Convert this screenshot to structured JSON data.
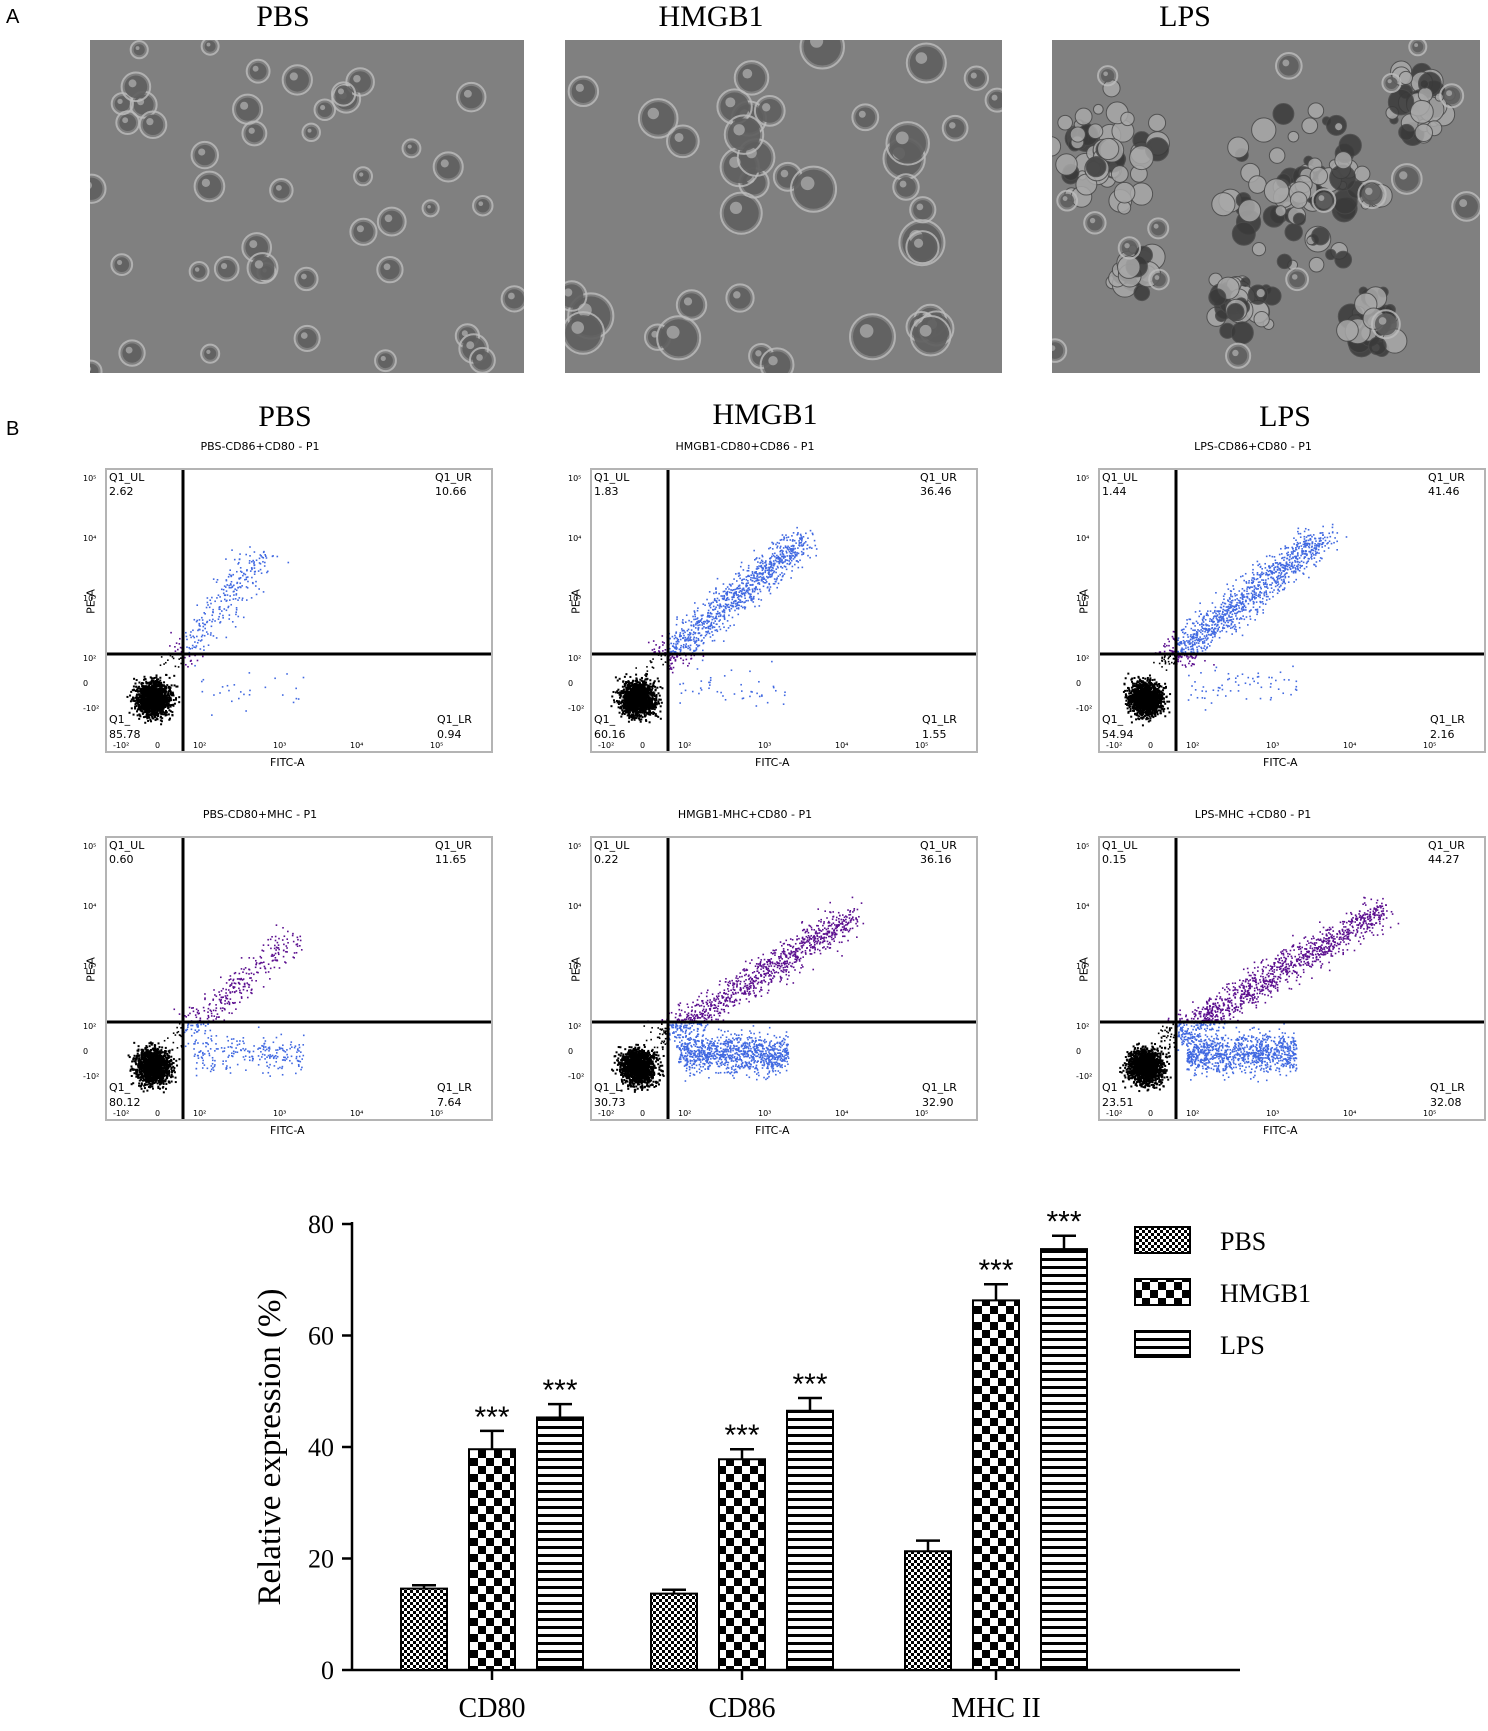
{
  "panel_a": {
    "letter": "A",
    "titles": [
      "PBS",
      "HMGB1",
      "LPS"
    ]
  },
  "panel_b": {
    "letter": "B",
    "titles": [
      "PBS",
      "HMGB1",
      "LPS"
    ],
    "flow_plots": [
      {
        "title": "PBS-CD86+CD80 - P1",
        "ul_name": "Q1_UL",
        "ul": "2.62",
        "ur_name": "Q1_UR",
        "ur": "10.66",
        "ll_name": "Q1_",
        "ll": "85.78",
        "lr_name": "Q1_LR",
        "lr": "0.94",
        "xlabel": "FITC-A",
        "ylabel": "PE-A",
        "upper_color": "#4169e1",
        "mid_color": "#5b0f8f",
        "kind": "cd86"
      },
      {
        "title": "HMGB1-CD80+CD86 - P1",
        "ul_name": "Q1_UL",
        "ul": "1.83",
        "ur_name": "Q1_UR",
        "ur": "36.46",
        "ll_name": "Q1_",
        "ll": "60.16",
        "lr_name": "Q1_LR",
        "lr": "1.55",
        "xlabel": "FITC-A",
        "ylabel": "PE-A",
        "upper_color": "#4169e1",
        "mid_color": "#5b0f8f",
        "kind": "cd86"
      },
      {
        "title": "LPS-CD86+CD80 - P1",
        "ul_name": "Q1_UL",
        "ul": "1.44",
        "ur_name": "Q1_UR",
        "ur": "41.46",
        "ll_name": "Q1_",
        "ll": "54.94",
        "lr_name": "Q1_LR",
        "lr": "2.16",
        "xlabel": "FITC-A",
        "ylabel": "PE-A",
        "upper_color": "#4169e1",
        "mid_color": "#5b0f8f",
        "kind": "cd86"
      },
      {
        "title": "PBS-CD80+MHC - P1",
        "ul_name": "Q1_UL",
        "ul": "0.60",
        "ur_name": "Q1_UR",
        "ur": "11.65",
        "ll_name": "Q1_",
        "ll": "80.12",
        "lr_name": "Q1_LR",
        "lr": "7.64",
        "xlabel": "FITC-A",
        "ylabel": "PE-A",
        "upper_color": "#5b0f8f",
        "mid_color": "#4169e1",
        "kind": "mhc"
      },
      {
        "title": "HMGB1-MHC+CD80 - P1",
        "ul_name": "Q1_UL",
        "ul": "0.22",
        "ur_name": "Q1_UR",
        "ur": "36.16",
        "ll_name": "Q1_L",
        "ll": "30.73",
        "lr_name": "Q1_LR",
        "lr": "32.90",
        "xlabel": "FITC-A",
        "ylabel": "PE-A",
        "upper_color": "#5b0f8f",
        "mid_color": "#4169e1",
        "kind": "mhc"
      },
      {
        "title": "LPS-MHC   +CD80 - P1",
        "ul_name": "Q1_UL",
        "ul": "0.15",
        "ur_name": "Q1_UR",
        "ur": "44.27",
        "ll_name": "Q1",
        "ll": "23.51",
        "lr_name": "Q1_LR",
        "lr": "32.08",
        "xlabel": "FITC-A",
        "ylabel": "PE-A",
        "upper_color": "#5b0f8f",
        "mid_color": "#4169e1",
        "kind": "mhc"
      }
    ],
    "y_ticks": [
      "10⁵",
      "10⁴",
      "10³",
      "10²",
      "0",
      "-10²"
    ],
    "x_ticks": [
      "-10²",
      "0",
      "10²",
      "10³",
      "10⁴",
      "10⁵"
    ]
  },
  "chart_data": {
    "type": "bar",
    "title": "",
    "xlabel": "",
    "ylabel": "Relative expression (%)",
    "ylim": [
      0,
      80
    ],
    "yticks": [
      0,
      20,
      40,
      60,
      80
    ],
    "categories": [
      "CD80",
      "CD86",
      "MHC II"
    ],
    "series": [
      {
        "name": "PBS",
        "pattern": "fine-check",
        "values": [
          14.6,
          13.7,
          21.3
        ],
        "errors": [
          0.6,
          0.7,
          1.9
        ]
      },
      {
        "name": "HMGB1",
        "pattern": "coarse-check",
        "values": [
          39.6,
          37.8,
          66.3
        ],
        "errors": [
          3.3,
          1.8,
          2.9
        ]
      },
      {
        "name": "LPS",
        "pattern": "horizontal-stripes",
        "values": [
          45.3,
          46.5,
          75.5
        ],
        "errors": [
          2.4,
          2.3,
          2.4
        ]
      }
    ],
    "annotations": [
      {
        "category": "CD80",
        "series": "HMGB1",
        "text": "***"
      },
      {
        "category": "CD80",
        "series": "LPS",
        "text": "***"
      },
      {
        "category": "CD86",
        "series": "HMGB1",
        "text": "***"
      },
      {
        "category": "CD86",
        "series": "LPS",
        "text": "***"
      },
      {
        "category": "MHC II",
        "series": "HMGB1",
        "text": "***"
      },
      {
        "category": "MHC II",
        "series": "LPS",
        "text": "***"
      }
    ],
    "legend": "right"
  }
}
